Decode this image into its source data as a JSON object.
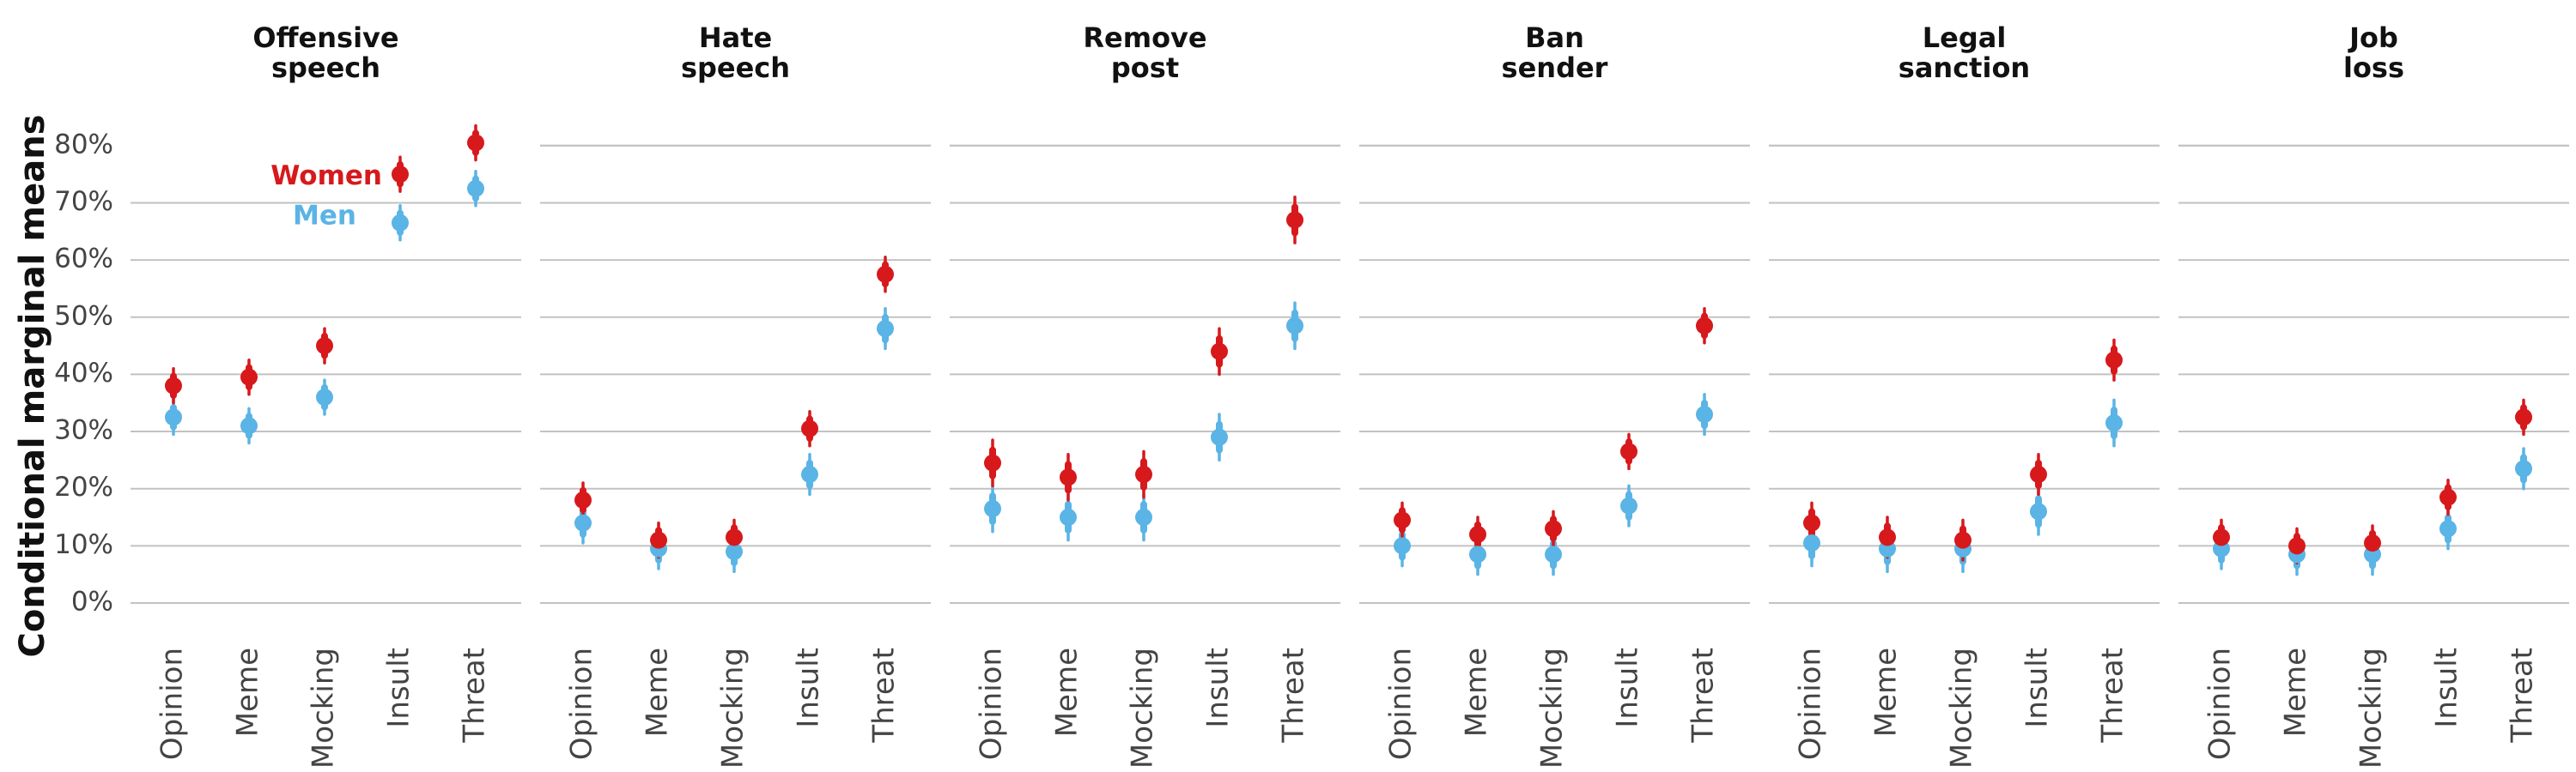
{
  "chart_data": {
    "type": "scatter",
    "ylabel": "Conditional marginal means",
    "yticks": [
      "0%",
      "10%",
      "20%",
      "30%",
      "40%",
      "50%",
      "60%",
      "70%",
      "80%"
    ],
    "ylim": [
      0,
      80
    ],
    "categories": [
      "Opinion",
      "Meme",
      "Mocking",
      "Insult",
      "Threat"
    ],
    "legend": {
      "placement": "inside-first-panel",
      "entries": [
        "Women",
        "Men"
      ]
    },
    "colors": {
      "Women": "#d7191c",
      "Men": "#5ab4e5"
    },
    "panels": [
      {
        "title_lines": [
          "Offensive",
          "speech"
        ],
        "series": [
          {
            "name": "Women",
            "values": [
              38,
              39.5,
              45,
              75,
              80.5
            ],
            "ci": [
              [
                35,
                41
              ],
              [
                36.5,
                42.5
              ],
              [
                42,
                48
              ],
              [
                72,
                78
              ],
              [
                77.5,
                83.5
              ]
            ]
          },
          {
            "name": "Men",
            "values": [
              32.5,
              31,
              36,
              66.5,
              72.5
            ],
            "ci": [
              [
                29.5,
                35.5
              ],
              [
                28,
                34
              ],
              [
                33,
                39
              ],
              [
                63.5,
                69.5
              ],
              [
                69.5,
                75.5
              ]
            ]
          }
        ]
      },
      {
        "title_lines": [
          "Hate",
          "speech"
        ],
        "series": [
          {
            "name": "Women",
            "values": [
              18,
              11,
              11.5,
              30.5,
              57.5
            ],
            "ci": [
              [
                15,
                21
              ],
              [
                8,
                14
              ],
              [
                8.5,
                14.5
              ],
              [
                27.5,
                33.5
              ],
              [
                54.5,
                60.5
              ]
            ]
          },
          {
            "name": "Men",
            "values": [
              14,
              9.5,
              9,
              22.5,
              48
            ],
            "ci": [
              [
                10.5,
                17.5
              ],
              [
                6,
                13
              ],
              [
                5.5,
                12.5
              ],
              [
                19,
                26
              ],
              [
                44.5,
                51.5
              ]
            ]
          }
        ]
      },
      {
        "title_lines": [
          "Remove",
          "post"
        ],
        "series": [
          {
            "name": "Women",
            "values": [
              24.5,
              22,
              22.5,
              44,
              67
            ],
            "ci": [
              [
                20.5,
                28.5
              ],
              [
                18,
                26
              ],
              [
                18.5,
                26.5
              ],
              [
                40,
                48
              ],
              [
                63,
                71
              ]
            ]
          },
          {
            "name": "Men",
            "values": [
              16.5,
              15,
              15,
              29,
              48.5
            ],
            "ci": [
              [
                12.5,
                20.5
              ],
              [
                11,
                19
              ],
              [
                11,
                19
              ],
              [
                25,
                33
              ],
              [
                44.5,
                52.5
              ]
            ]
          }
        ]
      },
      {
        "title_lines": [
          "Ban",
          "sender"
        ],
        "series": [
          {
            "name": "Women",
            "values": [
              14.5,
              12,
              13,
              26.5,
              48.5
            ],
            "ci": [
              [
                11.5,
                17.5
              ],
              [
                9,
                15
              ],
              [
                10,
                16
              ],
              [
                23.5,
                29.5
              ],
              [
                45.5,
                51.5
              ]
            ]
          },
          {
            "name": "Men",
            "values": [
              10,
              8.5,
              8.5,
              17,
              33
            ],
            "ci": [
              [
                6.5,
                13.5
              ],
              [
                5,
                12
              ],
              [
                5,
                12
              ],
              [
                13.5,
                20.5
              ],
              [
                29.5,
                36.5
              ]
            ]
          }
        ]
      },
      {
        "title_lines": [
          "Legal",
          "sanction"
        ],
        "series": [
          {
            "name": "Women",
            "values": [
              14,
              11.5,
              11,
              22.5,
              42.5
            ],
            "ci": [
              [
                10.5,
                17.5
              ],
              [
                8,
                15
              ],
              [
                7.5,
                14.5
              ],
              [
                19,
                26
              ],
              [
                39,
                46
              ]
            ]
          },
          {
            "name": "Men",
            "values": [
              10.5,
              9.5,
              9.5,
              16,
              31.5
            ],
            "ci": [
              [
                6.5,
                14.5
              ],
              [
                5.5,
                13.5
              ],
              [
                5.5,
                13.5
              ],
              [
                12,
                20
              ],
              [
                27.5,
                35.5
              ]
            ]
          }
        ]
      },
      {
        "title_lines": [
          "Job",
          "loss"
        ],
        "series": [
          {
            "name": "Women",
            "values": [
              11.5,
              10,
              10.5,
              18.5,
              32.5
            ],
            "ci": [
              [
                8.5,
                14.5
              ],
              [
                7,
                13
              ],
              [
                7.5,
                13.5
              ],
              [
                15.5,
                21.5
              ],
              [
                29.5,
                35.5
              ]
            ]
          },
          {
            "name": "Men",
            "values": [
              9.5,
              8.5,
              8.5,
              13,
              23.5
            ],
            "ci": [
              [
                6,
                13
              ],
              [
                5,
                12
              ],
              [
                5,
                12
              ],
              [
                9.5,
                16.5
              ],
              [
                20,
                27
              ]
            ]
          }
        ]
      }
    ]
  }
}
